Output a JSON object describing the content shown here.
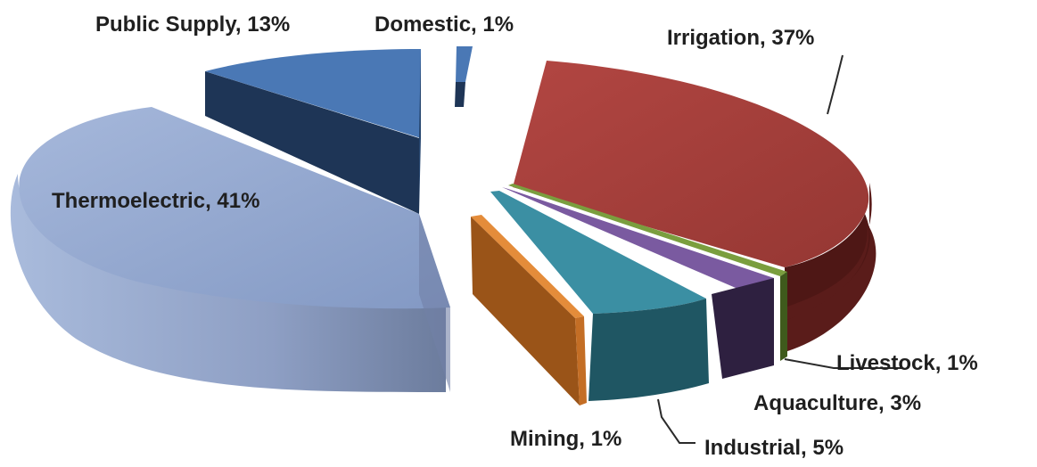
{
  "chart_data": {
    "type": "pie",
    "style": "3d-exploded",
    "slices": [
      {
        "key": "irrigation",
        "label": "Irrigation, 37%",
        "value": 37,
        "color": "#a8403c",
        "side_color": "#5a1c1a"
      },
      {
        "key": "livestock",
        "label": "Livestock, 1%",
        "value": 1,
        "color": "#7a9e3e",
        "side_color": "#3f5a1c"
      },
      {
        "key": "aquaculture",
        "label": "Aquaculture, 3%",
        "value": 3,
        "color": "#7a5aa0",
        "side_color": "#2e2040"
      },
      {
        "key": "industrial",
        "label": "Industrial, 5%",
        "value": 5,
        "color": "#3b8fa3",
        "side_color": "#1f5663"
      },
      {
        "key": "mining",
        "label": "Mining, 1%",
        "value": 1,
        "color": "#e48c3a",
        "side_color": "#9a5418"
      },
      {
        "key": "thermoelectric",
        "label": "Thermoelectric, 41%",
        "value": 41,
        "color": "#93a9d0",
        "side_color": "#6e7fa3"
      },
      {
        "key": "public_supply",
        "label": "Public Supply,  13%",
        "value": 13,
        "color": "#4a78b5",
        "side_color": "#1e3556"
      },
      {
        "key": "domestic",
        "label": "Domestic, 1%",
        "value": 1,
        "color": "#4a78b5",
        "side_color": "#1e3556"
      }
    ],
    "legend": "none"
  }
}
